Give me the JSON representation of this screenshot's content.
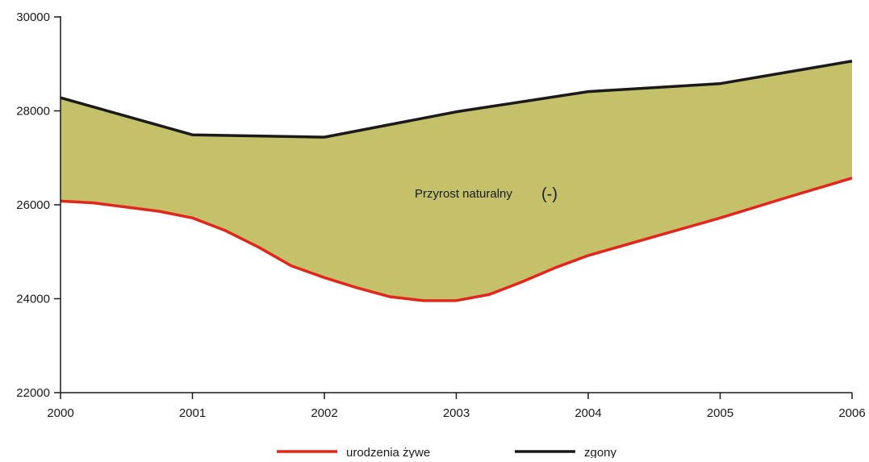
{
  "chart_data": {
    "type": "area",
    "title": "",
    "xlabel": "",
    "ylabel": "",
    "xlim": [
      2000,
      2006
    ],
    "ylim": [
      22000,
      30000
    ],
    "x_ticks": [
      "2000",
      "2001",
      "2002",
      "2003",
      "2004",
      "2005",
      "2006"
    ],
    "y_ticks": [
      "22000",
      "24000",
      "26000",
      "28000",
      "30000"
    ],
    "grid": false,
    "legend_position": "bottom",
    "fill_between": {
      "upper_series": "zgony",
      "lower_series": "urodzenia żywe",
      "color": "#c4c16a",
      "label": "Przyrost naturalny",
      "sign": "(-)"
    },
    "series": [
      {
        "name": "urodzenia żywe",
        "color": "#e2261c",
        "x": [
          2000,
          2000.25,
          2000.5,
          2000.75,
          2001,
          2001.25,
          2001.5,
          2001.75,
          2002,
          2002.25,
          2002.5,
          2002.75,
          2003,
          2003.25,
          2003.5,
          2003.75,
          2004,
          2004.5,
          2005,
          2005.5,
          2006
        ],
        "values": [
          26080,
          26040,
          25950,
          25860,
          25720,
          25450,
          25100,
          24700,
          24450,
          24230,
          24040,
          23960,
          23960,
          24090,
          24360,
          24660,
          24920,
          25320,
          25720,
          26150,
          26570
        ]
      },
      {
        "name": "zgony",
        "color": "#1a1a1a",
        "x": [
          2000,
          2001,
          2002,
          2003,
          2004,
          2005,
          2006
        ],
        "values": [
          28280,
          27490,
          27440,
          27980,
          28410,
          28580,
          29060
        ]
      }
    ]
  }
}
